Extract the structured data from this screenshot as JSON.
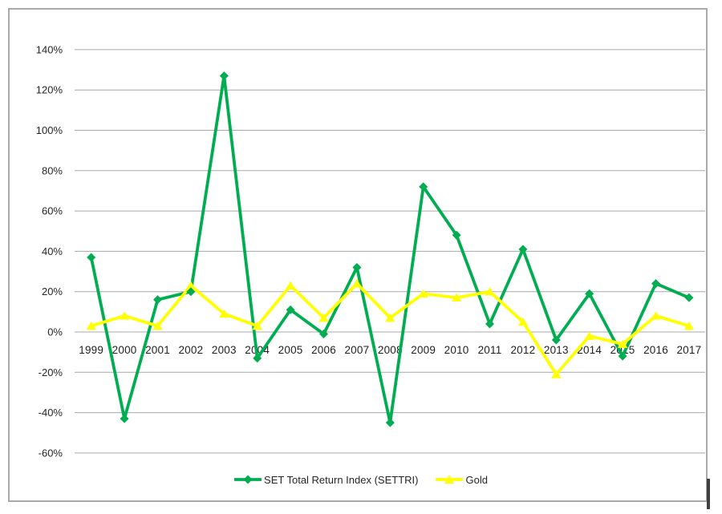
{
  "chart_data": {
    "type": "line",
    "title": "",
    "categories": [
      "1999",
      "2000",
      "2001",
      "2002",
      "2003",
      "2004",
      "2005",
      "2006",
      "2007",
      "2008",
      "2009",
      "2010",
      "2011",
      "2012",
      "2013",
      "2014",
      "2015",
      "2016",
      "2017"
    ],
    "series": [
      {
        "name": "SET Total Return Index (SETTRI)",
        "color": "#00AD51",
        "marker": "diamond",
        "values": [
          37,
          -43,
          16,
          20,
          127,
          -13,
          11,
          -1,
          32,
          -45,
          72,
          48,
          4,
          41,
          -4,
          19,
          -12,
          24,
          17
        ]
      },
      {
        "name": "Gold",
        "color": "#FFFF00",
        "marker": "triangle",
        "values": [
          3,
          8,
          3,
          23,
          9,
          3,
          23,
          7,
          24,
          7,
          19,
          17,
          20,
          5,
          -21,
          -2,
          -6,
          8,
          3
        ]
      }
    ],
    "ylim": [
      -60,
      140
    ],
    "ytick_step": 20,
    "ytick_labels": [
      "140%",
      "120%",
      "100%",
      "80%",
      "60%",
      "40%",
      "20%",
      "0%",
      "-20%",
      "-40%",
      "-60%"
    ],
    "grid": true,
    "legend_position": "bottom",
    "colors": {
      "gridline": "#a8a8a8",
      "frame_border": "#a9a9a9",
      "tick_text": "#262626",
      "background": "#ffffff"
    }
  }
}
